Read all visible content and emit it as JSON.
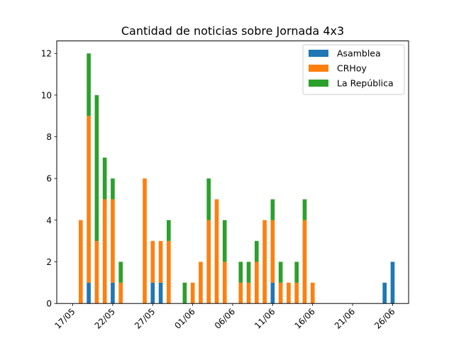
{
  "chart_data": {
    "type": "bar",
    "stacked": true,
    "title": "Cantidad de noticias sobre Jornada 4x3",
    "xlabel": "",
    "ylabel": "",
    "x_tick_labels": [
      "17/05",
      "22/05",
      "27/05",
      "01/06",
      "06/06",
      "11/06",
      "16/06",
      "21/06",
      "26/06"
    ],
    "x_ticks": [
      "2021-05-17",
      "2021-05-22",
      "2021-05-27",
      "2021-06-01",
      "2021-06-06",
      "2021-06-11",
      "2021-06-16",
      "2021-06-21",
      "2021-06-26"
    ],
    "y_ticks": [
      0,
      2,
      4,
      6,
      8,
      10,
      12
    ],
    "xlim": [
      "2021-05-15",
      "2021-06-28"
    ],
    "ylim": [
      0,
      12.6
    ],
    "legend_position": "top-right",
    "categories": [
      "2021-05-18",
      "2021-05-19",
      "2021-05-20",
      "2021-05-21",
      "2021-05-22",
      "2021-05-23",
      "2021-05-26",
      "2021-05-27",
      "2021-05-28",
      "2021-05-29",
      "2021-05-31",
      "2021-06-01",
      "2021-06-02",
      "2021-06-03",
      "2021-06-04",
      "2021-06-05",
      "2021-06-07",
      "2021-06-08",
      "2021-06-09",
      "2021-06-10",
      "2021-06-11",
      "2021-06-12",
      "2021-06-13",
      "2021-06-14",
      "2021-06-15",
      "2021-06-16",
      "2021-06-25",
      "2021-06-26"
    ],
    "series": [
      {
        "name": "Asamblea",
        "color": "#1f77b4",
        "values": [
          0,
          1,
          0,
          0,
          1,
          0,
          0,
          1,
          1,
          0,
          0,
          0,
          0,
          0,
          0,
          0,
          0,
          0,
          0,
          0,
          1,
          0,
          0,
          0,
          0,
          0,
          1,
          2
        ]
      },
      {
        "name": "CRHoy",
        "color": "#ff7f0e",
        "values": [
          4,
          8,
          3,
          5,
          4,
          1,
          6,
          2,
          2,
          3,
          0,
          1,
          2,
          4,
          5,
          2,
          1,
          1,
          2,
          4,
          3,
          1,
          1,
          1,
          4,
          1,
          0,
          0
        ]
      },
      {
        "name": "La República",
        "color": "#2ca02c",
        "values": [
          0,
          3,
          7,
          2,
          1,
          1,
          0,
          0,
          0,
          1,
          1,
          0,
          0,
          2,
          0,
          2,
          1,
          1,
          1,
          0,
          1,
          1,
          0,
          1,
          1,
          0,
          0,
          0
        ]
      }
    ]
  }
}
